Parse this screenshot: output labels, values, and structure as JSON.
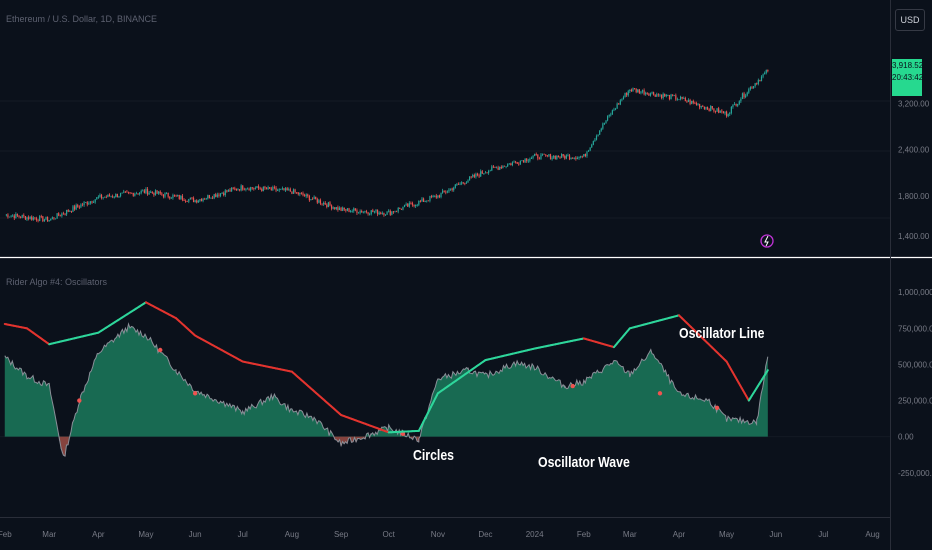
{
  "header": {
    "title": "Ethereum / U.S. Dollar, 1D, BINANCE",
    "currency_button": "USD"
  },
  "price_badge": {
    "price": "3,918.52",
    "countdown": "20:43:42"
  },
  "colors": {
    "background": "#0b111b",
    "bull": "#26a69a",
    "bear": "#ef5350",
    "wave_fill": "#1b7a5c",
    "wave_line": "#8a8f98",
    "osc_line_up": "#2ed69b",
    "osc_line_down": "#e3342f",
    "divider": "#ffffff",
    "alert_icon": "#c033d6"
  },
  "indicator": {
    "title": "Rider Algo #4: Oscillators"
  },
  "annotations": {
    "oscillator_line": "Oscillator Line",
    "circles": "Circles",
    "oscillator_wave": "Oscillator Wave"
  },
  "price_axis": {
    "ticks": [
      "3,200.00",
      "2,400.00",
      "1,800.00",
      "1,400.00"
    ],
    "scale": "log"
  },
  "osc_axis": {
    "ticks": [
      "1,000,000.00",
      "750,000.00",
      "500,000.00",
      "250,000.00",
      "0.00",
      "-250,000.00"
    ]
  },
  "time_axis": {
    "ticks": [
      "Feb",
      "Mar",
      "Apr",
      "May",
      "Jun",
      "Jul",
      "Aug",
      "Sep",
      "Oct",
      "Nov",
      "Dec",
      "2024",
      "Feb",
      "Mar",
      "Apr",
      "May",
      "Jun",
      "Jul",
      "Aug"
    ]
  },
  "chart_data": [
    {
      "type": "candlestick",
      "title": "Ethereum / U.S. Dollar, 1D, BINANCE",
      "x": [
        "2023-02-01",
        "2023-03-01",
        "2023-04-01",
        "2023-05-01",
        "2023-06-01",
        "2023-07-01",
        "2023-08-01",
        "2023-09-01",
        "2023-10-01",
        "2023-11-01",
        "2023-12-01",
        "2024-01-01",
        "2024-02-01",
        "2024-03-01",
        "2024-04-01",
        "2024-05-01",
        "2024-05-27"
      ],
      "close_approx": [
        1600,
        1550,
        1780,
        1850,
        1750,
        1900,
        1850,
        1650,
        1620,
        1800,
        2100,
        2300,
        2300,
        3500,
        3300,
        3000,
        3918.52
      ],
      "last_price": 3918.52,
      "ylim": [
        1300,
        4200
      ]
    },
    {
      "type": "area",
      "title": "Rider Algo #4: Oscillators",
      "series": [
        {
          "name": "Oscillator Wave",
          "x": [
            "2023-02-01",
            "2023-02-15",
            "2023-03-01",
            "2023-03-10",
            "2023-03-20",
            "2023-04-01",
            "2023-04-20",
            "2023-05-01",
            "2023-05-20",
            "2023-06-01",
            "2023-06-20",
            "2023-07-01",
            "2023-07-20",
            "2023-08-01",
            "2023-08-15",
            "2023-09-01",
            "2023-09-20",
            "2023-10-01",
            "2023-10-20",
            "2023-11-01",
            "2023-11-20",
            "2023-12-01",
            "2023-12-20",
            "2024-01-01",
            "2024-01-20",
            "2024-02-01",
            "2024-02-20",
            "2024-03-01",
            "2024-03-15",
            "2024-04-01",
            "2024-04-20",
            "2024-05-01",
            "2024-05-20",
            "2024-05-27"
          ],
          "values": [
            550000,
            420000,
            350000,
            -150000,
            250000,
            580000,
            760000,
            700000,
            460000,
            320000,
            230000,
            170000,
            280000,
            180000,
            130000,
            -50000,
            20000,
            60000,
            -20000,
            400000,
            460000,
            420000,
            510000,
            480000,
            350000,
            380000,
            520000,
            430000,
            590000,
            290000,
            250000,
            120000,
            100000,
            560000
          ]
        },
        {
          "name": "Oscillator Line",
          "x": [
            "2023-02-01",
            "2023-02-15",
            "2023-03-01",
            "2023-04-01",
            "2023-05-01",
            "2023-05-20",
            "2023-06-01",
            "2023-07-01",
            "2023-08-01",
            "2023-09-01",
            "2023-10-01",
            "2023-10-20",
            "2023-11-01",
            "2023-12-01",
            "2024-01-01",
            "2024-02-01",
            "2024-02-20",
            "2024-03-01",
            "2024-04-01",
            "2024-05-01",
            "2024-05-15",
            "2024-05-27"
          ],
          "values": [
            780000,
            750000,
            640000,
            720000,
            930000,
            820000,
            700000,
            520000,
            450000,
            150000,
            30000,
            40000,
            300000,
            530000,
            610000,
            680000,
            620000,
            750000,
            840000,
            520000,
            250000,
            460000
          ]
        }
      ],
      "ylim": [
        -300000,
        1050000
      ]
    }
  ]
}
